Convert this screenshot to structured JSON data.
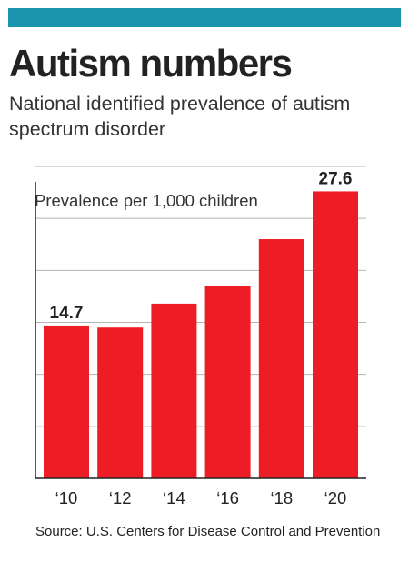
{
  "header": {
    "title": "Autism numbers",
    "subtitle": "National identified prevalence of autism spectrum disorder"
  },
  "colors": {
    "bar": "#ee1c24",
    "accent_bar": "#1b94b0",
    "grid": "#b5b5b5",
    "axis": "#222222",
    "text": "#222222"
  },
  "chart_data": {
    "type": "bar",
    "title": "Autism numbers",
    "subtitle": "National identified prevalence of autism spectrum disorder",
    "ylabel": "Prevalence per 1,000 children",
    "xlabel": "",
    "categories": [
      "‘10",
      "‘12",
      "‘14",
      "‘16",
      "‘18",
      "‘20"
    ],
    "series": [
      {
        "values": [
          14.7,
          14.5,
          16.8,
          18.5,
          23.0,
          27.6
        ]
      }
    ],
    "data_labels": [
      "14.7",
      "",
      "",
      "",
      "",
      "27.6"
    ],
    "ylim": [
      0,
      30
    ],
    "grid": true,
    "legend": "none"
  },
  "footer": {
    "source": "Source: U.S. Centers for Disease Control and Prevention"
  }
}
